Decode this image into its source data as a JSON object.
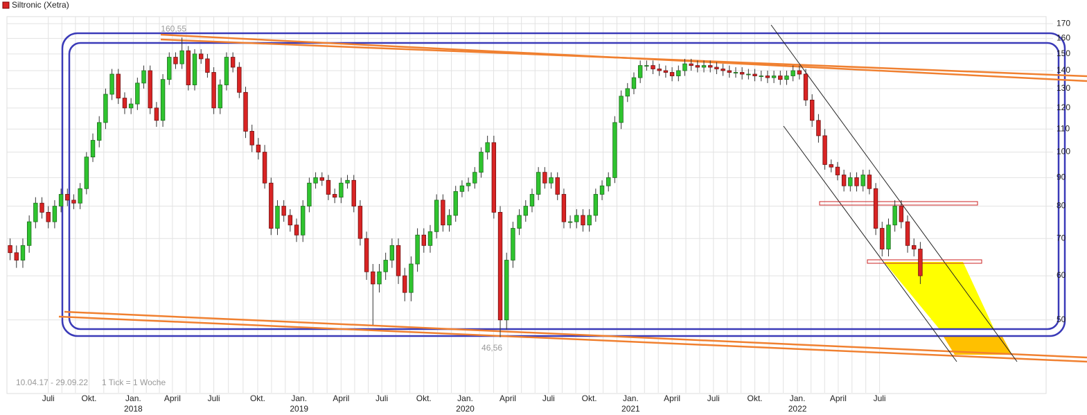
{
  "chart_data": {
    "type": "candlestick",
    "title": "Siltronic (Xetra)",
    "footer": "10.04.17 - 29.09.22",
    "footer_note": "1 Tick = 1 Woche",
    "log_scale": true,
    "ylim": [
      37,
      175
    ],
    "yticks": [
      50,
      60,
      70,
      80,
      90,
      100,
      110,
      120,
      130,
      140,
      150,
      160,
      170
    ],
    "grid": true,
    "up_color": "#2fc42f",
    "down_color": "#d92424",
    "xticks": [
      {
        "value": 6,
        "label": "Juli"
      },
      {
        "value": 12.4,
        "label": "Okt."
      },
      {
        "value": 19.35,
        "label": "Jan."
      },
      {
        "value": 25.5,
        "label": "April"
      },
      {
        "value": 32,
        "label": "Juli"
      },
      {
        "value": 38.9,
        "label": "Okt."
      },
      {
        "value": 45.4,
        "label": "Jan."
      },
      {
        "value": 52,
        "label": "April"
      },
      {
        "value": 58.4,
        "label": "Juli"
      },
      {
        "value": 65,
        "label": "Okt."
      },
      {
        "value": 71.5,
        "label": "Jan."
      },
      {
        "value": 78.2,
        "label": "April"
      },
      {
        "value": 84.6,
        "label": "Juli"
      },
      {
        "value": 91,
        "label": "Okt."
      },
      {
        "value": 97.5,
        "label": "Jan."
      },
      {
        "value": 104,
        "label": "April"
      },
      {
        "value": 110.5,
        "label": "Juli"
      },
      {
        "value": 117,
        "label": "Okt."
      },
      {
        "value": 123.7,
        "label": "Jan."
      },
      {
        "value": 130.1,
        "label": "April"
      },
      {
        "value": 136.6,
        "label": "Juli"
      }
    ],
    "year_ticks": [
      {
        "value": 19.35,
        "label": "2018"
      },
      {
        "value": 45.4,
        "label": "2019"
      },
      {
        "value": 71.5,
        "label": "2020"
      },
      {
        "value": 97.5,
        "label": "2021"
      },
      {
        "value": 123.7,
        "label": "2022"
      }
    ],
    "annotations": [
      {
        "value": 160.55,
        "label": "160,55"
      },
      {
        "value": 46.56,
        "label": "46,56"
      }
    ],
    "open": [
      68,
      66,
      64,
      68,
      75,
      81,
      78,
      75,
      80,
      84,
      82,
      81,
      86,
      98,
      105,
      113,
      127,
      138,
      125,
      120,
      122,
      133,
      140,
      120,
      114,
      135,
      148,
      144,
      152,
      132,
      150,
      147,
      139,
      120,
      132,
      148,
      142,
      128,
      109,
      103,
      100,
      88,
      73,
      80,
      77,
      74,
      71,
      80,
      88,
      90,
      89,
      84,
      83,
      88,
      89,
      80,
      70,
      61,
      58,
      61,
      64,
      68,
      60,
      56,
      63,
      71,
      68,
      72,
      82,
      74,
      77,
      85,
      87,
      88,
      92,
      100,
      104,
      78,
      50,
      64,
      73,
      77,
      80,
      84,
      92,
      88,
      90,
      84,
      75,
      75,
      77,
      74,
      77,
      84,
      87,
      90,
      113,
      126,
      130,
      136,
      143,
      143,
      141,
      140,
      139,
      137,
      140,
      144,
      143,
      142,
      143,
      142,
      141,
      140,
      139,
      139,
      138,
      138,
      137,
      137,
      136,
      137,
      135,
      137,
      140,
      138,
      124,
      114,
      107,
      95,
      94,
      91,
      87,
      90,
      87,
      91,
      86,
      73,
      67,
      74,
      80,
      75,
      68,
      67
    ],
    "high": [
      70,
      68,
      70,
      77,
      83,
      83,
      80,
      82,
      86,
      86,
      84,
      88,
      100,
      108,
      116,
      130,
      141,
      141,
      128,
      125,
      136,
      143,
      143,
      123,
      138,
      151,
      151,
      160.55,
      155,
      153,
      153,
      150,
      142,
      135,
      151,
      151,
      145,
      131,
      112,
      106,
      103,
      90,
      82,
      82,
      79,
      76,
      82,
      90,
      92,
      92,
      91,
      86,
      90,
      91,
      91,
      82,
      72,
      63,
      63,
      66,
      70,
      70,
      62,
      65,
      73,
      73,
      74,
      84,
      84,
      79,
      87,
      89,
      90,
      94,
      102,
      107,
      107,
      80,
      66,
      75,
      79,
      82,
      86,
      94,
      94,
      92,
      92,
      86,
      77,
      79,
      79,
      79,
      86,
      89,
      92,
      116,
      129,
      133,
      139,
      146,
      146,
      146,
      144,
      143,
      142,
      143,
      147,
      147,
      146,
      146,
      146,
      145,
      144,
      143,
      142,
      142,
      141,
      141,
      140,
      140,
      140,
      140,
      140,
      143,
      143,
      141,
      127,
      117,
      110,
      97,
      96,
      93,
      92,
      92,
      93,
      93,
      88,
      75,
      76,
      82,
      82,
      77,
      70,
      69
    ],
    "low": [
      64,
      62,
      62,
      66,
      73,
      76,
      73,
      73,
      78,
      80,
      79,
      79,
      84,
      96,
      102,
      110,
      124,
      122,
      117,
      117,
      119,
      130,
      117,
      111,
      111,
      132,
      141,
      141,
      129,
      129,
      144,
      136,
      117,
      117,
      129,
      139,
      125,
      106,
      100,
      97,
      86,
      71,
      71,
      75,
      72,
      69,
      69,
      78,
      86,
      87,
      82,
      81,
      81,
      86,
      78,
      68,
      59,
      49,
      56,
      59,
      62,
      58,
      54,
      54,
      61,
      66,
      66,
      70,
      72,
      72,
      75,
      83,
      85,
      86,
      90,
      97,
      76,
      46.56,
      48,
      62,
      71,
      75,
      78,
      82,
      86,
      86,
      82,
      73,
      73,
      73,
      72,
      72,
      75,
      82,
      85,
      88,
      110,
      123,
      127,
      133,
      140,
      138,
      137,
      136,
      134,
      134,
      137,
      140,
      139,
      139,
      139,
      138,
      137,
      136,
      136,
      135,
      135,
      134,
      134,
      133,
      133,
      132,
      132,
      134,
      135,
      121,
      111,
      104,
      93,
      92,
      89,
      85,
      85,
      85,
      85,
      84,
      71,
      65,
      65,
      72,
      73,
      66,
      65,
      58
    ],
    "close": [
      66,
      64,
      68,
      75,
      81,
      78,
      75,
      80,
      84,
      82,
      81,
      86,
      98,
      105,
      113,
      127,
      138,
      125,
      120,
      122,
      133,
      140,
      120,
      114,
      135,
      148,
      144,
      152,
      132,
      150,
      147,
      139,
      120,
      132,
      148,
      142,
      128,
      109,
      103,
      100,
      88,
      73,
      80,
      77,
      74,
      71,
      80,
      88,
      90,
      89,
      84,
      83,
      88,
      89,
      80,
      70,
      61,
      58,
      61,
      64,
      68,
      60,
      56,
      63,
      71,
      68,
      72,
      82,
      74,
      77,
      85,
      87,
      88,
      92,
      100,
      104,
      78,
      50,
      64,
      73,
      77,
      80,
      84,
      92,
      88,
      90,
      84,
      75,
      75,
      77,
      74,
      77,
      84,
      87,
      90,
      113,
      126,
      130,
      136,
      143,
      143,
      141,
      140,
      139,
      137,
      140,
      144,
      143,
      142,
      143,
      142,
      141,
      140,
      139,
      139,
      138,
      138,
      137,
      137,
      136,
      137,
      135,
      137,
      140,
      138,
      124,
      114,
      107,
      95,
      94,
      91,
      87,
      90,
      87,
      91,
      86,
      73,
      67,
      74,
      80,
      75,
      68,
      67,
      60
    ]
  }
}
